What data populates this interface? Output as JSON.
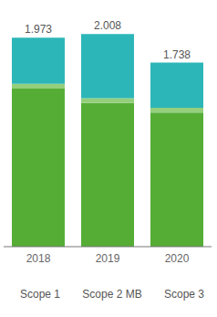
{
  "chart_data": {
    "type": "bar",
    "stacked": true,
    "categories": [
      "2018",
      "2019",
      "2020"
    ],
    "series": [
      {
        "name": "Scope 1",
        "color": "#55ad36",
        "values": [
          1.493,
          1.357,
          1.267
        ]
      },
      {
        "name": "Scope 2 MB",
        "color": "#94cf7c",
        "values": [
          0.045,
          0.045,
          0.045
        ]
      },
      {
        "name": "Scope 3",
        "color": "#2db6b8",
        "values": [
          0.435,
          0.606,
          0.426
        ]
      }
    ],
    "totals": [
      1.973,
      2.008,
      1.738
    ],
    "ylim": [
      0,
      2.2
    ],
    "tick_labels": "x",
    "grid": false,
    "legend": "bottom"
  }
}
